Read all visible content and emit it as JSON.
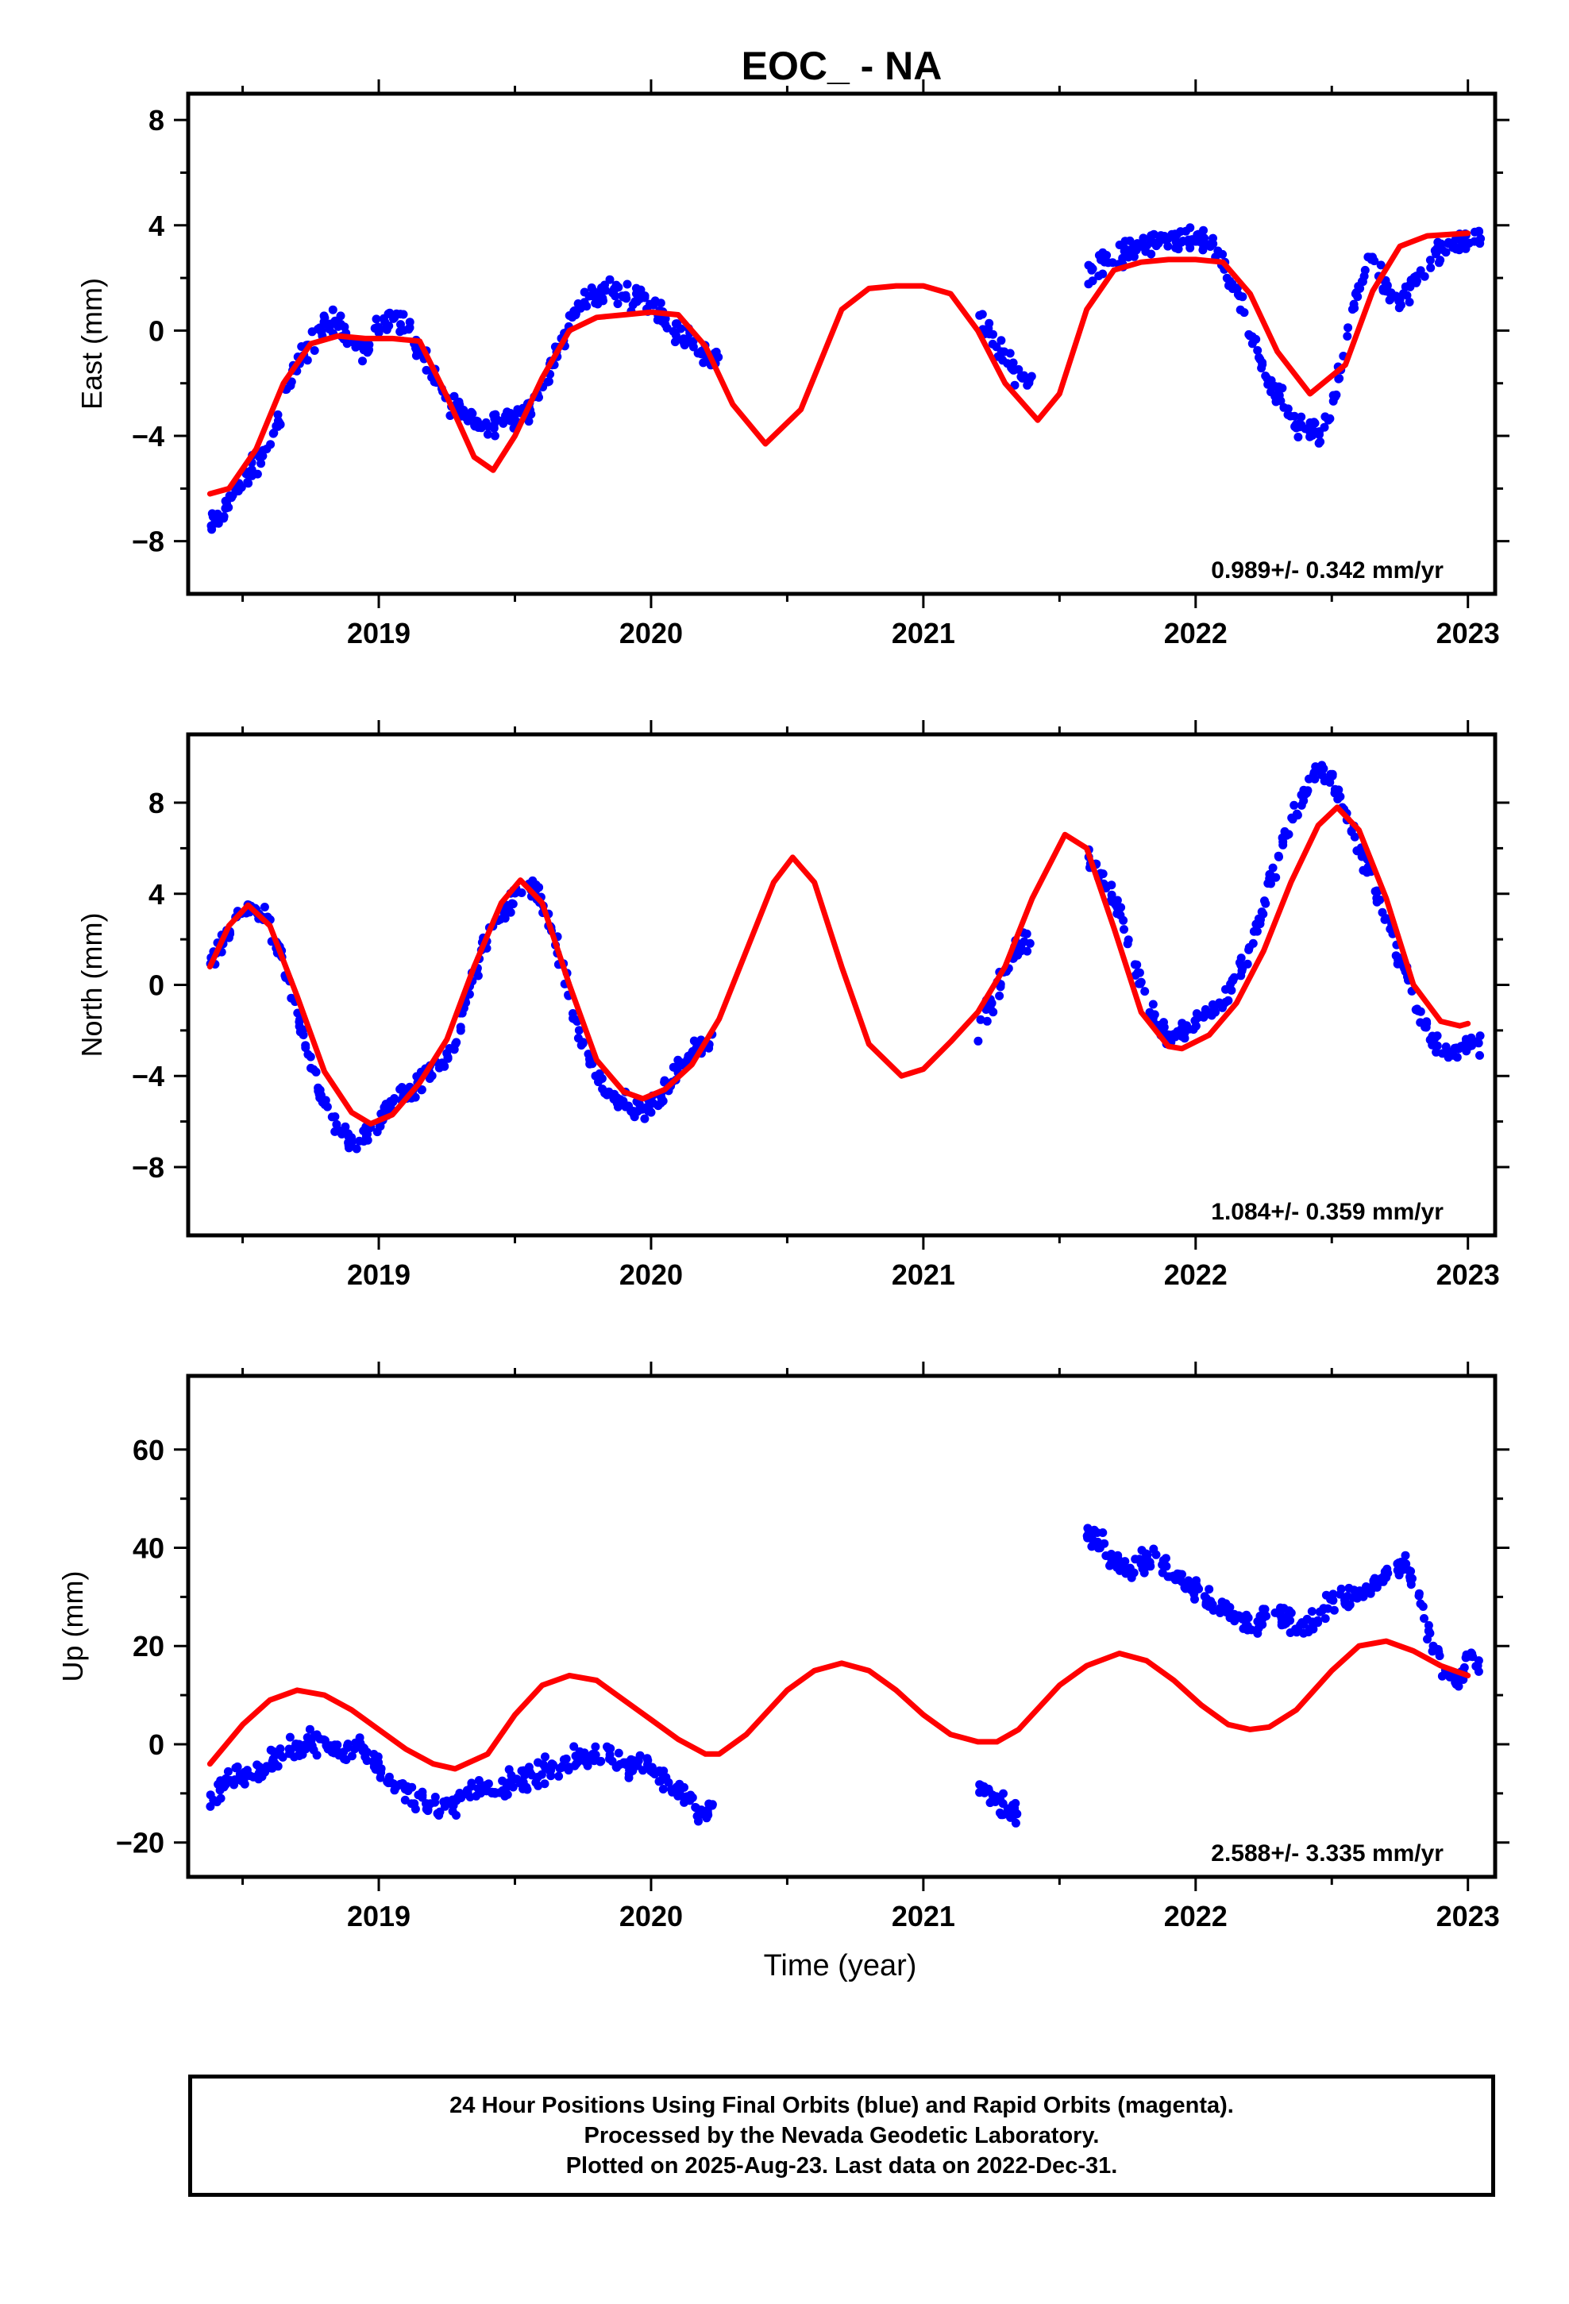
{
  "figure": {
    "title": "EOC_ - NA",
    "x_axis_label": "Time (year)",
    "colors": {
      "data_points": "#0000ff",
      "model_curve": "#ff0000",
      "frame": "#000000"
    }
  },
  "chart_data": [
    {
      "type": "scatter",
      "title": "",
      "ylabel": "East (mm)",
      "xlabel": "",
      "xlim": [
        2018.3,
        2023.1
      ],
      "ylim": [
        -10,
        9
      ],
      "xticks": [
        "2019",
        "2020",
        "2021",
        "2022",
        "2023"
      ],
      "yticks": [
        "8",
        "4",
        "0",
        "−4",
        "−8"
      ],
      "ytick_values": [
        8,
        4,
        0,
        -4,
        -8
      ],
      "rate_label": "0.989+/- 0.342 mm/yr",
      "series": [
        {
          "color": "#0000ff",
          "x": [
            2018.38,
            2018.42,
            2018.46,
            2018.5,
            2018.55,
            2018.6,
            2018.65,
            2018.7,
            2018.75,
            2018.8,
            2018.85,
            2018.9,
            2018.95,
            2019.0,
            2019.05,
            2019.1,
            2019.15,
            2019.2,
            2019.25,
            2019.3,
            2019.35,
            2019.4,
            2019.45,
            2019.5,
            2019.55,
            2019.6,
            2019.65,
            2019.7,
            2019.75,
            2019.8,
            2019.85,
            2019.9,
            2019.95,
            2020.0,
            2020.05,
            2020.1,
            2020.15,
            2020.2,
            2021.2,
            2021.25,
            2021.3,
            2021.35,
            2021.6,
            2021.65,
            2021.7,
            2021.75,
            2021.8,
            2021.85,
            2021.9,
            2021.95,
            2022.0,
            2022.05,
            2022.1,
            2022.15,
            2022.2,
            2022.25,
            2022.3,
            2022.35,
            2022.4,
            2022.45,
            2022.5,
            2022.55,
            2022.6,
            2022.65,
            2022.7,
            2022.75,
            2022.8,
            2022.85,
            2022.9,
            2022.95,
            2023.0
          ],
          "y": [
            -7.5,
            -7.0,
            -6.3,
            -5.8,
            -5.0,
            -4.5,
            -2.8,
            -1.2,
            -0.5,
            0.2,
            0.4,
            -0.3,
            -0.8,
            0.2,
            0.5,
            0.2,
            -0.8,
            -1.8,
            -2.6,
            -3.0,
            -3.5,
            -3.6,
            -3.3,
            -3.2,
            -3.0,
            -2.4,
            -1.0,
            0.2,
            1.2,
            1.4,
            1.6,
            1.2,
            1.4,
            1.0,
            0.5,
            0.0,
            -0.4,
            -1.0,
            0.4,
            -0.2,
            -1.0,
            -1.8,
            2.2,
            2.6,
            2.8,
            2.9,
            3.3,
            3.4,
            3.5,
            3.6,
            3.4,
            3.2,
            2.5,
            1.5,
            0.0,
            -1.5,
            -2.3,
            -3.3,
            -3.8,
            -4.0,
            -3.2,
            -0.5,
            1.8,
            3.0,
            1.5,
            1.0,
            1.7,
            2.3,
            3.0,
            3.3,
            3.5
          ]
        },
        {
          "color": "#ff0000",
          "x": [
            2018.38,
            2018.45,
            2018.55,
            2018.65,
            2018.75,
            2018.85,
            2018.95,
            2019.05,
            2019.15,
            2019.25,
            2019.35,
            2019.42,
            2019.5,
            2019.6,
            2019.7,
            2019.8,
            2019.9,
            2020.0,
            2020.1,
            2020.2,
            2020.3,
            2020.42,
            2020.55,
            2020.7,
            2020.8,
            2020.9,
            2021.0,
            2021.1,
            2021.2,
            2021.3,
            2021.42,
            2021.5,
            2021.6,
            2021.7,
            2021.8,
            2021.9,
            2022.0,
            2022.1,
            2022.2,
            2022.3,
            2022.42,
            2022.55,
            2022.65,
            2022.75,
            2022.85,
            2023.0
          ],
          "y": [
            -6.2,
            -6.0,
            -4.5,
            -2.0,
            -0.5,
            -0.2,
            -0.3,
            -0.3,
            -0.4,
            -2.5,
            -4.8,
            -5.3,
            -4.0,
            -1.8,
            0.0,
            0.5,
            0.6,
            0.7,
            0.6,
            -0.6,
            -2.8,
            -4.3,
            -3.0,
            0.8,
            1.6,
            1.7,
            1.7,
            1.4,
            0.0,
            -2.0,
            -3.4,
            -2.4,
            0.8,
            2.3,
            2.6,
            2.7,
            2.7,
            2.6,
            1.4,
            -0.8,
            -2.4,
            -1.3,
            1.5,
            3.2,
            3.6,
            3.7
          ]
        }
      ]
    },
    {
      "type": "scatter",
      "title": "",
      "ylabel": "North (mm)",
      "xlabel": "",
      "xlim": [
        2018.3,
        2023.1
      ],
      "ylim": [
        -11,
        11
      ],
      "xticks": [
        "2019",
        "2020",
        "2021",
        "2022",
        "2023"
      ],
      "yticks": [
        "8",
        "4",
        "0",
        "−4",
        "−8"
      ],
      "ytick_values": [
        8,
        4,
        0,
        -4,
        -8
      ],
      "rate_label": "1.084+/- 0.359 mm/yr",
      "series": [
        {
          "color": "#0000ff",
          "x": [
            2018.38,
            2018.43,
            2018.48,
            2018.53,
            2018.58,
            2018.63,
            2018.68,
            2018.73,
            2018.78,
            2018.83,
            2018.88,
            2018.93,
            2018.98,
            2019.03,
            2019.08,
            2019.13,
            2019.18,
            2019.23,
            2019.28,
            2019.33,
            2019.38,
            2019.43,
            2019.48,
            2019.53,
            2019.58,
            2019.63,
            2019.68,
            2019.73,
            2019.78,
            2019.83,
            2019.88,
            2019.93,
            2019.98,
            2020.03,
            2020.08,
            2020.13,
            2020.18,
            2021.2,
            2021.25,
            2021.3,
            2021.35,
            2021.6,
            2021.65,
            2021.7,
            2021.75,
            2021.8,
            2021.85,
            2021.9,
            2021.95,
            2022.0,
            2022.05,
            2022.1,
            2022.15,
            2022.2,
            2022.25,
            2022.3,
            2022.35,
            2022.4,
            2022.45,
            2022.5,
            2022.55,
            2022.6,
            2022.65,
            2022.7,
            2022.75,
            2022.8,
            2022.85,
            2022.9,
            2022.95,
            2023.0
          ],
          "y": [
            0.5,
            2.0,
            2.8,
            3.5,
            3.0,
            1.5,
            -0.5,
            -2.5,
            -4.5,
            -6.0,
            -6.8,
            -7.0,
            -6.2,
            -5.5,
            -4.8,
            -4.5,
            -4.0,
            -3.5,
            -2.5,
            -0.5,
            1.5,
            2.8,
            3.5,
            4.5,
            4.2,
            2.5,
            0.5,
            -2.0,
            -3.5,
            -4.5,
            -5.2,
            -5.5,
            -5.5,
            -5.0,
            -4.0,
            -3.2,
            -2.5,
            -2.0,
            -0.8,
            0.5,
            1.8,
            5.5,
            4.8,
            4.0,
            2.0,
            0.0,
            -1.5,
            -2.2,
            -2.0,
            -1.5,
            -1.2,
            -0.8,
            0.5,
            1.5,
            3.5,
            5.5,
            7.0,
            8.5,
            9.5,
            9.0,
            7.5,
            6.0,
            4.5,
            3.0,
            1.0,
            -0.5,
            -2.0,
            -2.8,
            -3.0,
            -2.5
          ]
        },
        {
          "color": "#ff0000",
          "x": [
            2018.38,
            2018.45,
            2018.52,
            2018.6,
            2018.7,
            2018.8,
            2018.9,
            2018.97,
            2019.05,
            2019.15,
            2019.25,
            2019.35,
            2019.45,
            2019.52,
            2019.6,
            2019.7,
            2019.8,
            2019.9,
            2019.97,
            2020.05,
            2020.15,
            2020.25,
            2020.35,
            2020.45,
            2020.52,
            2020.6,
            2020.7,
            2020.8,
            2020.92,
            2021.0,
            2021.1,
            2021.2,
            2021.3,
            2021.4,
            2021.52,
            2021.6,
            2021.7,
            2021.8,
            2021.9,
            2021.95,
            2022.05,
            2022.15,
            2022.25,
            2022.35,
            2022.45,
            2022.52,
            2022.6,
            2022.7,
            2022.8,
            2022.9,
            2022.97,
            2023.0
          ],
          "y": [
            0.8,
            2.6,
            3.5,
            2.6,
            -0.5,
            -3.8,
            -5.6,
            -6.1,
            -5.7,
            -4.3,
            -2.4,
            0.8,
            3.6,
            4.6,
            3.6,
            0.0,
            -3.3,
            -4.7,
            -5.0,
            -4.6,
            -3.5,
            -1.5,
            1.5,
            4.5,
            5.6,
            4.5,
            0.8,
            -2.6,
            -4.0,
            -3.7,
            -2.5,
            -1.2,
            0.8,
            3.8,
            6.6,
            6.0,
            2.5,
            -1.2,
            -2.7,
            -2.8,
            -2.2,
            -0.8,
            1.5,
            4.5,
            7.0,
            7.8,
            6.8,
            3.8,
            0.0,
            -1.6,
            -1.8,
            -1.7
          ]
        }
      ]
    },
    {
      "type": "scatter",
      "title": "",
      "ylabel": "Up (mm)",
      "xlabel": "Time (year)",
      "xlim": [
        2018.3,
        2023.1
      ],
      "ylim": [
        -27,
        75
      ],
      "xticks": [
        "2019",
        "2020",
        "2021",
        "2022",
        "2023"
      ],
      "yticks": [
        "60",
        "40",
        "20",
        "0",
        "−20"
      ],
      "ytick_values": [
        60,
        40,
        20,
        0,
        -20
      ],
      "rate_label": "2.588+/- 3.335 mm/yr",
      "series": [
        {
          "color": "#0000ff",
          "x": [
            2018.38,
            2018.43,
            2018.48,
            2018.53,
            2018.58,
            2018.63,
            2018.68,
            2018.73,
            2018.78,
            2018.83,
            2018.88,
            2018.93,
            2018.98,
            2019.03,
            2019.08,
            2019.13,
            2019.18,
            2019.23,
            2019.28,
            2019.33,
            2019.38,
            2019.43,
            2019.48,
            2019.53,
            2019.58,
            2019.63,
            2019.68,
            2019.73,
            2019.78,
            2019.83,
            2019.88,
            2019.93,
            2019.98,
            2020.03,
            2020.08,
            2020.13,
            2020.18,
            2021.2,
            2021.24,
            2021.28,
            2021.32,
            2021.6,
            2021.63,
            2021.67,
            2021.72,
            2021.77,
            2021.82,
            2021.87,
            2021.92,
            2021.97,
            2022.02,
            2022.07,
            2022.12,
            2022.17,
            2022.22,
            2022.27,
            2022.32,
            2022.37,
            2022.42,
            2022.47,
            2022.52,
            2022.57,
            2022.62,
            2022.67,
            2022.72,
            2022.77,
            2022.82,
            2022.87,
            2022.92,
            2022.97,
            2023.0
          ],
          "y": [
            -12,
            -8,
            -6,
            -7,
            -5,
            -3,
            -1,
            0,
            1,
            -1,
            -2,
            0,
            -3,
            -6,
            -9,
            -11,
            -12,
            -13,
            -12,
            -10,
            -9,
            -10,
            -8,
            -7,
            -6,
            -5,
            -4,
            -3,
            -2,
            -3,
            -4,
            -5,
            -4,
            -6,
            -8,
            -11,
            -14,
            -8,
            -10,
            -12,
            -14,
            44,
            43,
            40,
            36,
            35,
            38,
            37,
            35,
            33,
            31,
            29,
            27,
            25,
            24,
            27,
            26,
            25,
            24,
            28,
            29,
            30,
            31,
            33,
            35,
            37,
            28,
            20,
            15,
            13,
            17
          ]
        },
        {
          "color": "#ff0000",
          "x": [
            2018.38,
            2018.5,
            2018.6,
            2018.7,
            2018.8,
            2018.9,
            2019.0,
            2019.1,
            2019.2,
            2019.28,
            2019.4,
            2019.5,
            2019.6,
            2019.7,
            2019.8,
            2019.9,
            2020.0,
            2020.1,
            2020.2,
            2020.25,
            2020.35,
            2020.5,
            2020.6,
            2020.7,
            2020.8,
            2020.9,
            2021.0,
            2021.1,
            2021.2,
            2021.27,
            2021.35,
            2021.5,
            2021.6,
            2021.72,
            2021.82,
            2021.92,
            2022.02,
            2022.12,
            2022.2,
            2022.27,
            2022.37,
            2022.5,
            2022.6,
            2022.7,
            2022.8,
            2022.9,
            2023.0
          ],
          "y": [
            -4,
            4,
            9,
            11,
            10,
            7,
            3,
            -1,
            -4,
            -5,
            -2,
            6,
            12,
            14,
            13,
            9,
            5,
            1,
            -2,
            -2,
            2,
            11,
            15,
            16.5,
            15,
            11,
            6,
            2,
            0.5,
            0.5,
            3,
            12,
            16,
            18.5,
            17,
            13,
            8,
            4,
            3,
            3.5,
            7,
            15,
            20,
            21,
            19,
            16,
            14
          ]
        }
      ]
    }
  ],
  "footer": {
    "lines": [
      "24 Hour Positions Using Final Orbits (blue) and Rapid Orbits (magenta).",
      "Processed by the Nevada Geodetic Laboratory.",
      "Plotted on 2025-Aug-23. Last data on 2022-Dec-31."
    ]
  }
}
